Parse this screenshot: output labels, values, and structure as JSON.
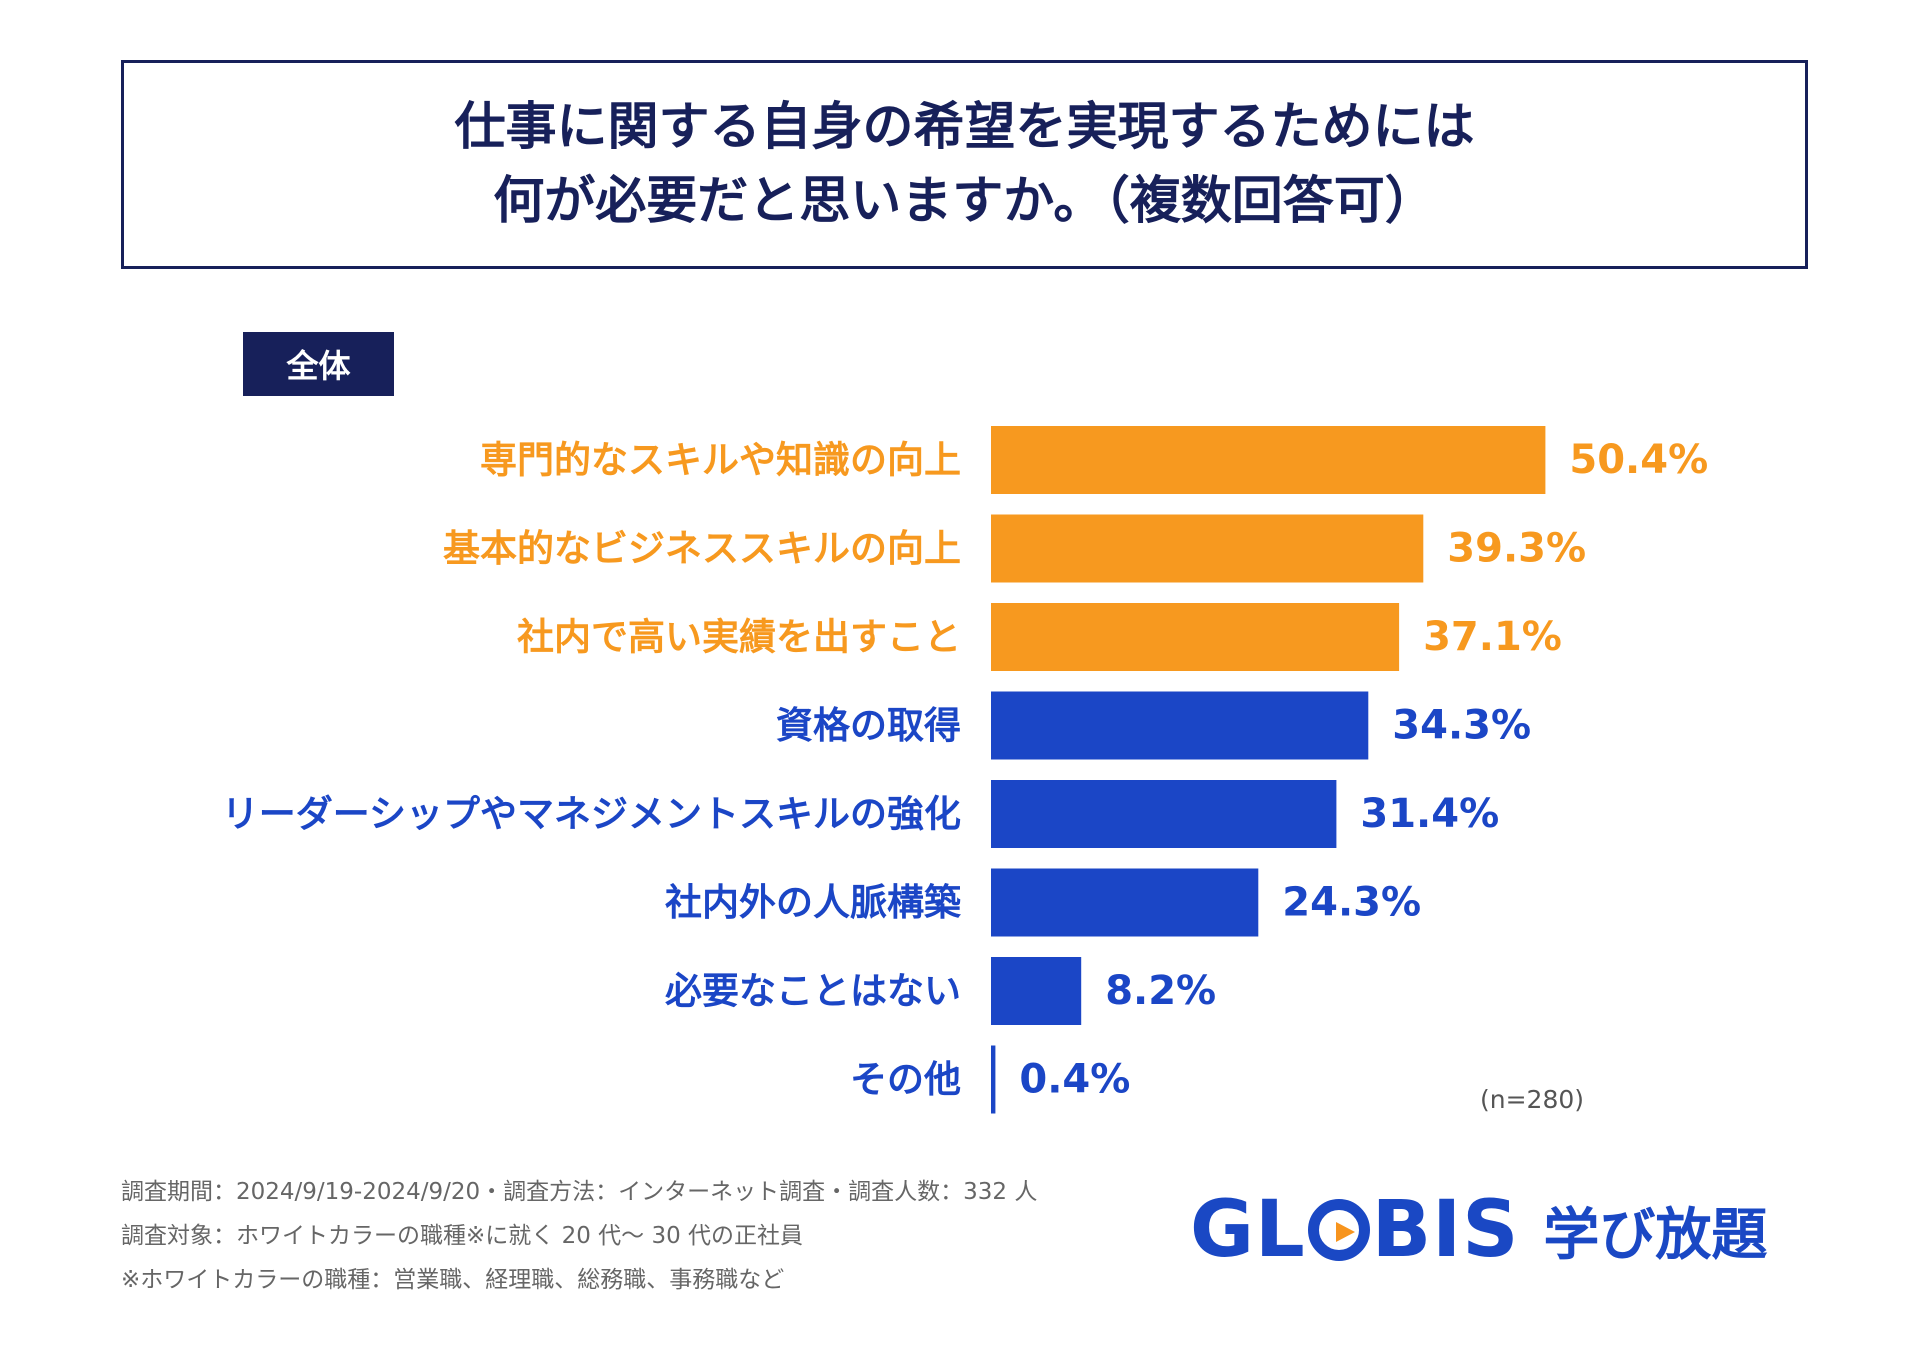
{
  "title": {
    "line1": "仕事に関する自身の希望を実現するためには",
    "line2": "何が必要だと思いますか。（複数回答可）"
  },
  "badge": "全体",
  "chart_data": {
    "type": "bar",
    "orientation": "horizontal",
    "title": "仕事に関する自身の希望を実現するためには何が必要だと思いますか。（複数回答可）",
    "categories": [
      "専門的なスキルや知識の向上",
      "基本的なビジネススキルの向上",
      "社内で高い実績を出すこと",
      "資格の取得",
      "リーダーシップやマネジメントスキルの強化",
      "社内外の人脈構築",
      "必要なことはない",
      "その他"
    ],
    "values": [
      50.4,
      39.3,
      37.1,
      34.3,
      31.4,
      24.3,
      8.2,
      0.4
    ],
    "value_labels": [
      "50.4%",
      "39.3%",
      "37.1%",
      "34.3%",
      "31.4%",
      "24.3%",
      "8.2%",
      "0.4%"
    ],
    "unit": "%",
    "xlim": [
      0,
      100
    ],
    "highlight_count": 3,
    "colors": {
      "highlight": "#f7991f",
      "normal": "#1b46c6"
    }
  },
  "sample_note": "(n=280)",
  "notes": [
    "調査期間：2024/9/19-2024/9/20・調査方法：インターネット調査・調査人数：332 人",
    "調査対象：ホワイトカラーの職種※に就く 20 代〜 30 代の正社員",
    "※ホワイトカラーの職種：営業職、経理職、総務職、事務職など"
  ],
  "logo": {
    "brand_before": "GL",
    "brand_after": "BIS",
    "sub": "学び放題",
    "brand_color": "#1a48c4",
    "play_color": "#f7941d"
  }
}
